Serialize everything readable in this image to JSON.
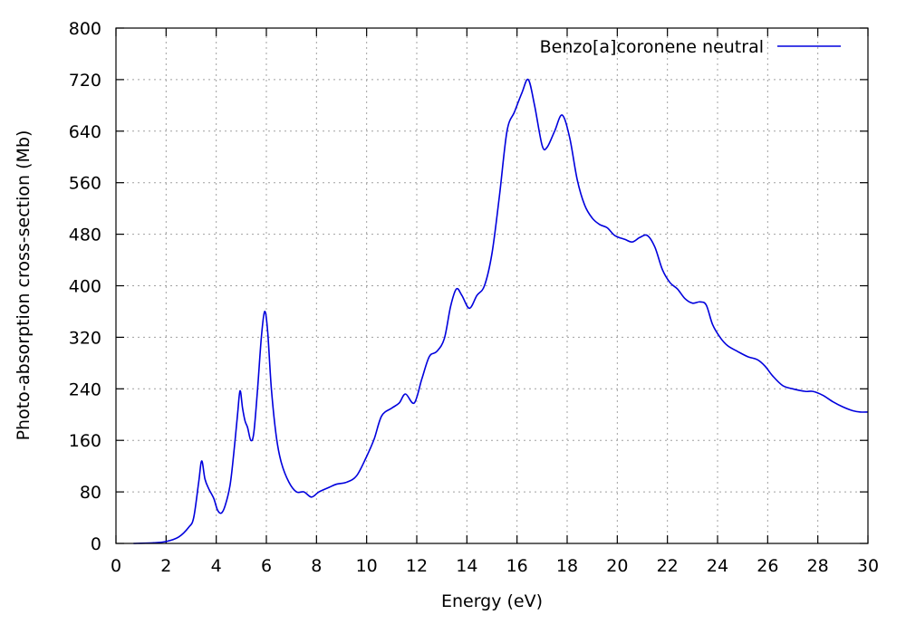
{
  "chart_data": {
    "type": "line",
    "title": "",
    "xlabel": "Energy (eV)",
    "ylabel": "Photo-absorption cross-section (Mb)",
    "xlim": [
      0,
      30
    ],
    "ylim": [
      0,
      800
    ],
    "xticks": [
      0,
      2,
      4,
      6,
      8,
      10,
      12,
      14,
      16,
      18,
      20,
      22,
      24,
      26,
      28,
      30
    ],
    "yticks": [
      0,
      80,
      160,
      240,
      320,
      400,
      480,
      560,
      640,
      720,
      800
    ],
    "grid": true,
    "legend_position": "top-right",
    "series": [
      {
        "name": "Benzo[a]coronene neutral",
        "color": "#0000dd",
        "points": [
          [
            0.7,
            0
          ],
          [
            1.5,
            1
          ],
          [
            2.0,
            3
          ],
          [
            2.5,
            10
          ],
          [
            2.9,
            25
          ],
          [
            3.1,
            40
          ],
          [
            3.3,
            95
          ],
          [
            3.42,
            128
          ],
          [
            3.55,
            100
          ],
          [
            3.7,
            85
          ],
          [
            3.9,
            70
          ],
          [
            4.05,
            52
          ],
          [
            4.2,
            47
          ],
          [
            4.35,
            58
          ],
          [
            4.55,
            90
          ],
          [
            4.7,
            140
          ],
          [
            4.85,
            200
          ],
          [
            4.95,
            237
          ],
          [
            5.05,
            210
          ],
          [
            5.15,
            190
          ],
          [
            5.25,
            180
          ],
          [
            5.38,
            160
          ],
          [
            5.5,
            172
          ],
          [
            5.65,
            240
          ],
          [
            5.8,
            320
          ],
          [
            5.93,
            360
          ],
          [
            6.05,
            330
          ],
          [
            6.2,
            240
          ],
          [
            6.4,
            165
          ],
          [
            6.6,
            125
          ],
          [
            6.9,
            95
          ],
          [
            7.2,
            80
          ],
          [
            7.5,
            80
          ],
          [
            7.8,
            72
          ],
          [
            8.1,
            80
          ],
          [
            8.5,
            87
          ],
          [
            8.8,
            92
          ],
          [
            9.2,
            95
          ],
          [
            9.6,
            105
          ],
          [
            10.0,
            135
          ],
          [
            10.3,
            162
          ],
          [
            10.6,
            198
          ],
          [
            11.0,
            210
          ],
          [
            11.3,
            218
          ],
          [
            11.55,
            232
          ],
          [
            11.9,
            218
          ],
          [
            12.2,
            255
          ],
          [
            12.5,
            290
          ],
          [
            12.8,
            298
          ],
          [
            13.1,
            318
          ],
          [
            13.35,
            368
          ],
          [
            13.58,
            395
          ],
          [
            13.8,
            385
          ],
          [
            14.1,
            365
          ],
          [
            14.4,
            385
          ],
          [
            14.7,
            400
          ],
          [
            15.0,
            450
          ],
          [
            15.3,
            540
          ],
          [
            15.6,
            640
          ],
          [
            15.9,
            670
          ],
          [
            16.2,
            700
          ],
          [
            16.45,
            720
          ],
          [
            16.7,
            680
          ],
          [
            17.0,
            618
          ],
          [
            17.2,
            615
          ],
          [
            17.5,
            640
          ],
          [
            17.8,
            665
          ],
          [
            18.1,
            630
          ],
          [
            18.4,
            565
          ],
          [
            18.7,
            525
          ],
          [
            19.0,
            505
          ],
          [
            19.3,
            495
          ],
          [
            19.6,
            490
          ],
          [
            19.9,
            478
          ],
          [
            20.3,
            472
          ],
          [
            20.6,
            468
          ],
          [
            20.9,
            475
          ],
          [
            21.2,
            478
          ],
          [
            21.5,
            460
          ],
          [
            21.8,
            425
          ],
          [
            22.1,
            405
          ],
          [
            22.4,
            395
          ],
          [
            22.7,
            380
          ],
          [
            23.0,
            373
          ],
          [
            23.3,
            375
          ],
          [
            23.55,
            370
          ],
          [
            23.8,
            340
          ],
          [
            24.1,
            320
          ],
          [
            24.4,
            307
          ],
          [
            24.8,
            298
          ],
          [
            25.2,
            290
          ],
          [
            25.6,
            285
          ],
          [
            25.9,
            275
          ],
          [
            26.2,
            260
          ],
          [
            26.6,
            245
          ],
          [
            27.0,
            240
          ],
          [
            27.5,
            236
          ],
          [
            27.8,
            236
          ],
          [
            28.2,
            230
          ],
          [
            28.6,
            220
          ],
          [
            29.0,
            212
          ],
          [
            29.4,
            206
          ],
          [
            29.7,
            204
          ],
          [
            30.0,
            204
          ]
        ]
      }
    ]
  }
}
